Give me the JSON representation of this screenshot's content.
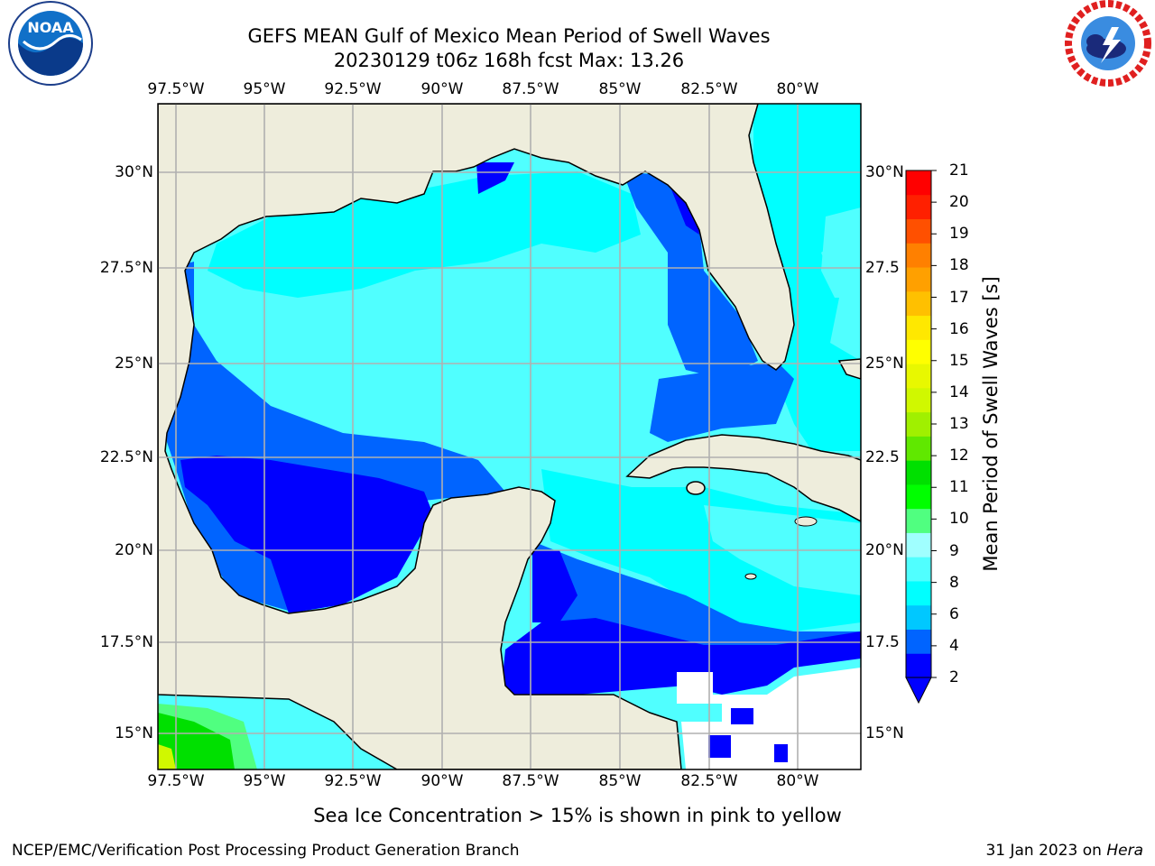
{
  "header": {
    "title_line1": "GEFS MEAN Gulf of Mexico Mean Period of Swell Waves",
    "title_line2": "20230129 t06z 168h fcst   Max: 13.26"
  },
  "logos": {
    "left": {
      "text": "NOAA",
      "ring_text": "NATIONAL OCEANIC AND ATMOSPHERIC ADMINISTRATION · U.S. DEPARTMENT OF COMMERCE"
    },
    "right": {
      "ring_text": "NATIONAL WEATHER SERVICE"
    }
  },
  "axes": {
    "lon_labels": [
      "97.5°W",
      "95°W",
      "92.5°W",
      "90°W",
      "87.5°W",
      "85°W",
      "82.5°W",
      "80°W"
    ],
    "lat_labels_left": [
      "30°N",
      "27.5°N",
      "25°N",
      "22.5°N",
      "20°N",
      "17.5°N",
      "15°N"
    ],
    "lat_labels_right": [
      "30°N",
      "27.5",
      "25°N",
      "22.5",
      "20°N",
      "17.5",
      "15°N"
    ]
  },
  "colorbar": {
    "label": "Mean Period of Swell Waves [s]",
    "ticks": [
      "21",
      "20",
      "19",
      "18",
      "17",
      "16",
      "15",
      "14",
      "13",
      "12",
      "11",
      "10",
      "9",
      "8",
      "6",
      "4",
      "2"
    ],
    "colors_bottom_to_top": [
      "#0000ff",
      "#0064ff",
      "#00c8ff",
      "#00ffff",
      "#50ffff",
      "#a0ffff",
      "#50ff80",
      "#00ff00",
      "#00e000",
      "#60e800",
      "#a0f000",
      "#d0f800",
      "#e8f800",
      "#ffff00",
      "#ffe800",
      "#ffc000",
      "#ffa000",
      "#ff8000",
      "#ff5000",
      "#ff2000",
      "#ff0000"
    ]
  },
  "colors": {
    "land": "#eeeddc",
    "ocean_light": "#50ffff",
    "ocean_cyan": "#00ffff",
    "ocean_mid": "#0064ff",
    "ocean_deep": "#0000ff",
    "grid": "#b0b0b0"
  },
  "footer": {
    "note": "Sea Ice Concentration > 15% is shown in pink to yellow",
    "credit": "NCEP/EMC/Verification Post Processing Product Generation Branch",
    "date": "31 Jan 2023 on ",
    "machine": "Hera"
  }
}
